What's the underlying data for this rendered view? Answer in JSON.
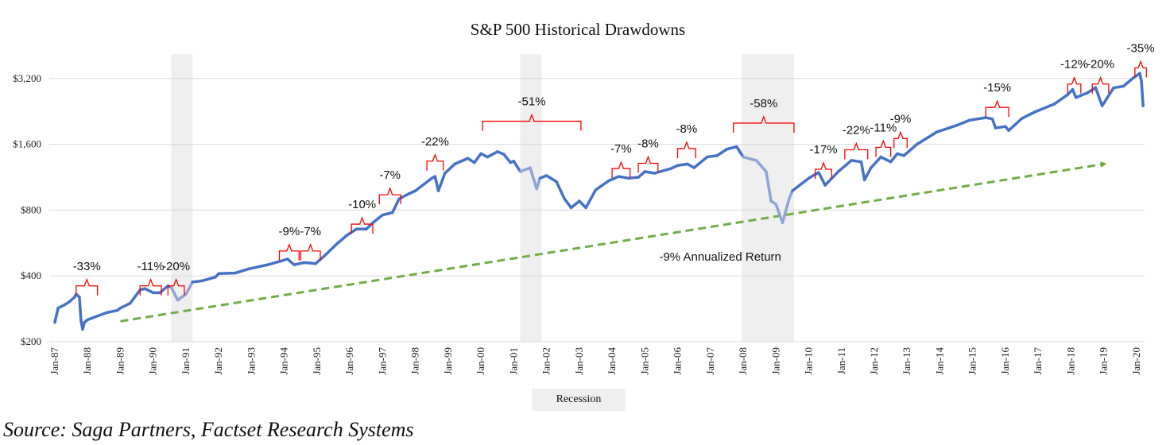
{
  "chart_data": {
    "type": "line",
    "title": "S&P 500 Historical Drawdowns",
    "xlabel": "",
    "ylabel": "",
    "yscale": "log2",
    "ylim": [
      200,
      3400
    ],
    "xlim": [
      1987.0,
      2020.3
    ],
    "grid": true,
    "y_ticks": [
      {
        "value": 200,
        "label": "$200"
      },
      {
        "value": 400,
        "label": "$400"
      },
      {
        "value": 800,
        "label": "$800"
      },
      {
        "value": 1600,
        "label": "$1,600"
      },
      {
        "value": 3200,
        "label": "$3,200"
      }
    ],
    "x_ticks": [
      "Jan-87",
      "Jan-88",
      "Jan-89",
      "Jan-90",
      "Jan-91",
      "Jan-92",
      "Jan-93",
      "Jan-94",
      "Jan-95",
      "Jan-96",
      "Jan-97",
      "Jan-98",
      "Jan-99",
      "Jan-00",
      "Jan-01",
      "Jan-02",
      "Jan-03",
      "Jan-04",
      "Jan-05",
      "Jan-06",
      "Jan-07",
      "Jan-08",
      "Jan-09",
      "Jan-10",
      "Jan-11",
      "Jan-12",
      "Jan-13",
      "Jan-14",
      "Jan-15",
      "Jan-16",
      "Jan-17",
      "Jan-18",
      "Jan-19",
      "Jan-20"
    ],
    "series": [
      {
        "name": "S&P 500",
        "color": "#4472c4",
        "recession_color": "#8ea5d6",
        "points": [
          [
            1987.0,
            245
          ],
          [
            1987.1,
            285
          ],
          [
            1987.3,
            295
          ],
          [
            1987.45,
            305
          ],
          [
            1987.6,
            320
          ],
          [
            1987.65,
            330
          ],
          [
            1987.75,
            320
          ],
          [
            1987.8,
            248
          ],
          [
            1987.85,
            228
          ],
          [
            1987.9,
            245
          ],
          [
            1988.0,
            252
          ],
          [
            1988.3,
            262
          ],
          [
            1988.6,
            272
          ],
          [
            1988.9,
            278
          ],
          [
            1989.0,
            285
          ],
          [
            1989.3,
            300
          ],
          [
            1989.6,
            345
          ],
          [
            1989.75,
            350
          ],
          [
            1990.0,
            335
          ],
          [
            1990.2,
            335
          ],
          [
            1990.45,
            360
          ],
          [
            1990.55,
            355
          ],
          [
            1990.75,
            310
          ],
          [
            1990.85,
            318
          ],
          [
            1991.0,
            330
          ],
          [
            1991.2,
            375
          ],
          [
            1991.5,
            380
          ],
          [
            1991.9,
            395
          ],
          [
            1992.0,
            410
          ],
          [
            1992.5,
            412
          ],
          [
            1992.9,
            430
          ],
          [
            1993.5,
            450
          ],
          [
            1993.9,
            468
          ],
          [
            1994.1,
            478
          ],
          [
            1994.3,
            450
          ],
          [
            1994.6,
            460
          ],
          [
            1994.8,
            458
          ],
          [
            1994.95,
            455
          ],
          [
            1995.2,
            490
          ],
          [
            1995.6,
            560
          ],
          [
            1995.9,
            612
          ],
          [
            1996.2,
            655
          ],
          [
            1996.5,
            655
          ],
          [
            1996.7,
            700
          ],
          [
            1997.0,
            760
          ],
          [
            1997.3,
            780
          ],
          [
            1997.5,
            900
          ],
          [
            1997.8,
            950
          ],
          [
            1998.0,
            980
          ],
          [
            1998.5,
            1120
          ],
          [
            1998.6,
            1140
          ],
          [
            1998.7,
            980
          ],
          [
            1998.9,
            1180
          ],
          [
            1999.2,
            1300
          ],
          [
            1999.6,
            1380
          ],
          [
            1999.8,
            1320
          ],
          [
            2000.0,
            1450
          ],
          [
            2000.2,
            1400
          ],
          [
            2000.5,
            1480
          ],
          [
            2000.7,
            1440
          ],
          [
            2000.9,
            1320
          ],
          [
            2001.0,
            1340
          ],
          [
            2001.2,
            1200
          ],
          [
            2001.5,
            1250
          ],
          [
            2001.7,
            1000
          ],
          [
            2001.8,
            1120
          ],
          [
            2002.0,
            1150
          ],
          [
            2002.3,
            1080
          ],
          [
            2002.55,
            900
          ],
          [
            2002.75,
            820
          ],
          [
            2003.0,
            880
          ],
          [
            2003.2,
            820
          ],
          [
            2003.5,
            990
          ],
          [
            2003.9,
            1090
          ],
          [
            2004.2,
            1140
          ],
          [
            2004.5,
            1120
          ],
          [
            2004.8,
            1130
          ],
          [
            2005.0,
            1200
          ],
          [
            2005.3,
            1180
          ],
          [
            2005.8,
            1240
          ],
          [
            2006.0,
            1280
          ],
          [
            2006.3,
            1300
          ],
          [
            2006.5,
            1250
          ],
          [
            2006.9,
            1400
          ],
          [
            2007.2,
            1420
          ],
          [
            2007.5,
            1520
          ],
          [
            2007.8,
            1560
          ],
          [
            2008.0,
            1400
          ],
          [
            2008.4,
            1350
          ],
          [
            2008.7,
            1200
          ],
          [
            2008.85,
            880
          ],
          [
            2009.0,
            850
          ],
          [
            2009.2,
            700
          ],
          [
            2009.4,
            900
          ],
          [
            2009.5,
            980
          ],
          [
            2010.0,
            1120
          ],
          [
            2010.3,
            1190
          ],
          [
            2010.5,
            1040
          ],
          [
            2010.9,
            1200
          ],
          [
            2011.3,
            1350
          ],
          [
            2011.6,
            1330
          ],
          [
            2011.7,
            1100
          ],
          [
            2011.9,
            1250
          ],
          [
            2012.2,
            1400
          ],
          [
            2012.5,
            1330
          ],
          [
            2012.7,
            1450
          ],
          [
            2012.9,
            1420
          ],
          [
            2013.3,
            1600
          ],
          [
            2013.9,
            1820
          ],
          [
            2014.5,
            1950
          ],
          [
            2014.9,
            2060
          ],
          [
            2015.4,
            2120
          ],
          [
            2015.6,
            2090
          ],
          [
            2015.7,
            1900
          ],
          [
            2016.0,
            1930
          ],
          [
            2016.1,
            1850
          ],
          [
            2016.5,
            2100
          ],
          [
            2016.9,
            2250
          ],
          [
            2017.5,
            2450
          ],
          [
            2017.9,
            2700
          ],
          [
            2018.05,
            2850
          ],
          [
            2018.15,
            2620
          ],
          [
            2018.5,
            2750
          ],
          [
            2018.75,
            2910
          ],
          [
            2018.95,
            2400
          ],
          [
            2019.3,
            2900
          ],
          [
            2019.6,
            2950
          ],
          [
            2019.9,
            3220
          ],
          [
            2020.1,
            3380
          ],
          [
            2020.15,
            3100
          ],
          [
            2020.2,
            2400
          ]
        ]
      },
      {
        "name": "-9% Annualized Return",
        "color": "#70ad47",
        "style": "dashed-arrow",
        "start": [
          1989.0,
          248
        ],
        "end": [
          2019.0,
          1300
        ]
      }
    ],
    "recessions": [
      {
        "start": 1990.55,
        "end": 1991.2
      },
      {
        "start": 2001.2,
        "end": 2001.85
      },
      {
        "start": 2007.95,
        "end": 2009.55
      }
    ],
    "drawdowns": [
      {
        "label": "-33%",
        "start": 1987.65,
        "end": 1988.3,
        "bracket_value": 360
      },
      {
        "label": "-11%",
        "start": 1989.6,
        "end": 1990.25,
        "bracket_value": 360
      },
      {
        "label": "-20%",
        "start": 1990.45,
        "end": 1990.95,
        "bracket_value": 360
      },
      {
        "label": "-9%",
        "start": 1993.85,
        "end": 1994.45,
        "bracket_value": 520
      },
      {
        "label": "-7%",
        "start": 1994.5,
        "end": 1995.1,
        "bracket_value": 520
      },
      {
        "label": "-10%",
        "start": 1996.05,
        "end": 1996.7,
        "bracket_value": 690
      },
      {
        "label": "-7%",
        "start": 1996.9,
        "end": 1997.55,
        "bracket_value": 940
      },
      {
        "label": "-22%",
        "start": 1998.35,
        "end": 1998.85,
        "bracket_value": 1340
      },
      {
        "label": "-51%",
        "start": 2000.05,
        "end": 2003.05,
        "bracket_value": 2040
      },
      {
        "label": "-7%",
        "start": 2004.0,
        "end": 2004.55,
        "bracket_value": 1240
      },
      {
        "label": "-8%",
        "start": 2004.8,
        "end": 2005.4,
        "bracket_value": 1310
      },
      {
        "label": "-8%",
        "start": 2006.0,
        "end": 2006.55,
        "bracket_value": 1530
      },
      {
        "label": "-58%",
        "start": 2007.7,
        "end": 2009.55,
        "bracket_value": 2000
      },
      {
        "label": "-17%",
        "start": 2010.2,
        "end": 2010.7,
        "bracket_value": 1230
      },
      {
        "label": "-22%",
        "start": 2011.1,
        "end": 2011.8,
        "bracket_value": 1510
      },
      {
        "label": "-11%",
        "start": 2012.05,
        "end": 2012.5,
        "bracket_value": 1550
      },
      {
        "label": "-9%",
        "start": 2012.6,
        "end": 2013.0,
        "bracket_value": 1700
      },
      {
        "label": "-15%",
        "start": 2015.4,
        "end": 2016.1,
        "bracket_value": 2360
      },
      {
        "label": "-12%",
        "start": 2017.9,
        "end": 2018.3,
        "bracket_value": 3020
      },
      {
        "label": "-20%",
        "start": 2018.65,
        "end": 2019.15,
        "bracket_value": 3020
      },
      {
        "label": "-35%",
        "start": 2019.95,
        "end": 2020.3,
        "bracket_value": 3580
      }
    ],
    "annotations": [
      {
        "text": "-9% Annualized Return",
        "x": 2007.3,
        "y": 470
      }
    ],
    "legend": {
      "entries": [
        "Recession"
      ],
      "placement": "bottom-center"
    }
  },
  "legend_label": "Recession",
  "source": "Source: Saga Partners, Factset Research Systems"
}
